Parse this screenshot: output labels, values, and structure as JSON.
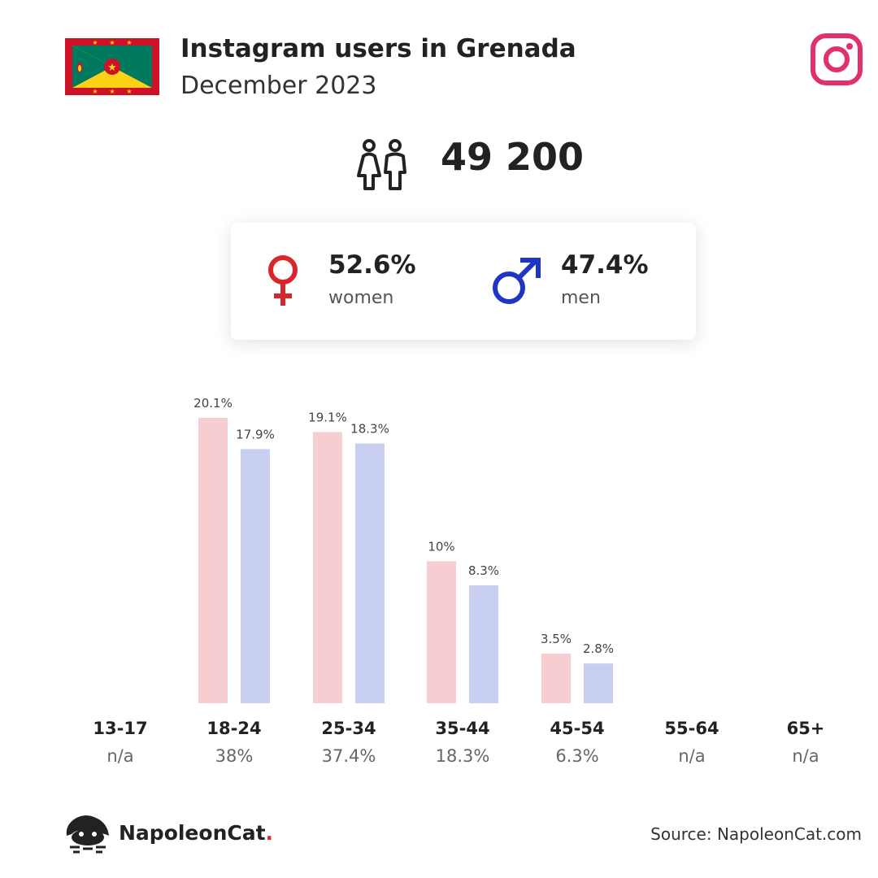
{
  "header": {
    "title": "Instagram users in Grenada",
    "subtitle": "December 2023"
  },
  "summary": {
    "total_users": "49 200",
    "women_pct": "52.6%",
    "women_label": "women",
    "men_pct": "47.4%",
    "men_label": "men"
  },
  "icons": {
    "flag": "grenada-flag-icon",
    "platform": "instagram-icon",
    "users": "users-icon",
    "female": "female-symbol-icon",
    "male": "male-symbol-icon",
    "logo": "napoleoncat-logo-icon"
  },
  "colors": {
    "women_bar": "#f6cdd0",
    "men_bar": "#c9cff0",
    "female_symbol": "#d9262c",
    "male_symbol": "#1f35c4",
    "instagram": "#e1306c"
  },
  "chart_data": {
    "type": "bar",
    "categories": [
      "13-17",
      "18-24",
      "25-34",
      "35-44",
      "45-54",
      "55-64",
      "65+"
    ],
    "series": [
      {
        "name": "women",
        "values": [
          null,
          20.1,
          19.1,
          10,
          3.5,
          null,
          null
        ],
        "labels": [
          "",
          "20.1%",
          "19.1%",
          "10%",
          "3.5%",
          "",
          ""
        ]
      },
      {
        "name": "men",
        "values": [
          null,
          17.9,
          18.3,
          8.3,
          2.8,
          null,
          null
        ],
        "labels": [
          "",
          "17.9%",
          "18.3%",
          "8.3%",
          "2.8%",
          "",
          ""
        ]
      }
    ],
    "totals": [
      "n/a",
      "38%",
      "37.4%",
      "18.3%",
      "6.3%",
      "n/a",
      "n/a"
    ],
    "ylim": [
      0,
      20.1
    ],
    "grid": false
  },
  "footer": {
    "brand": "NapoleonCat",
    "brand_dot": ".",
    "source": "Source: NapoleonCat.com"
  }
}
